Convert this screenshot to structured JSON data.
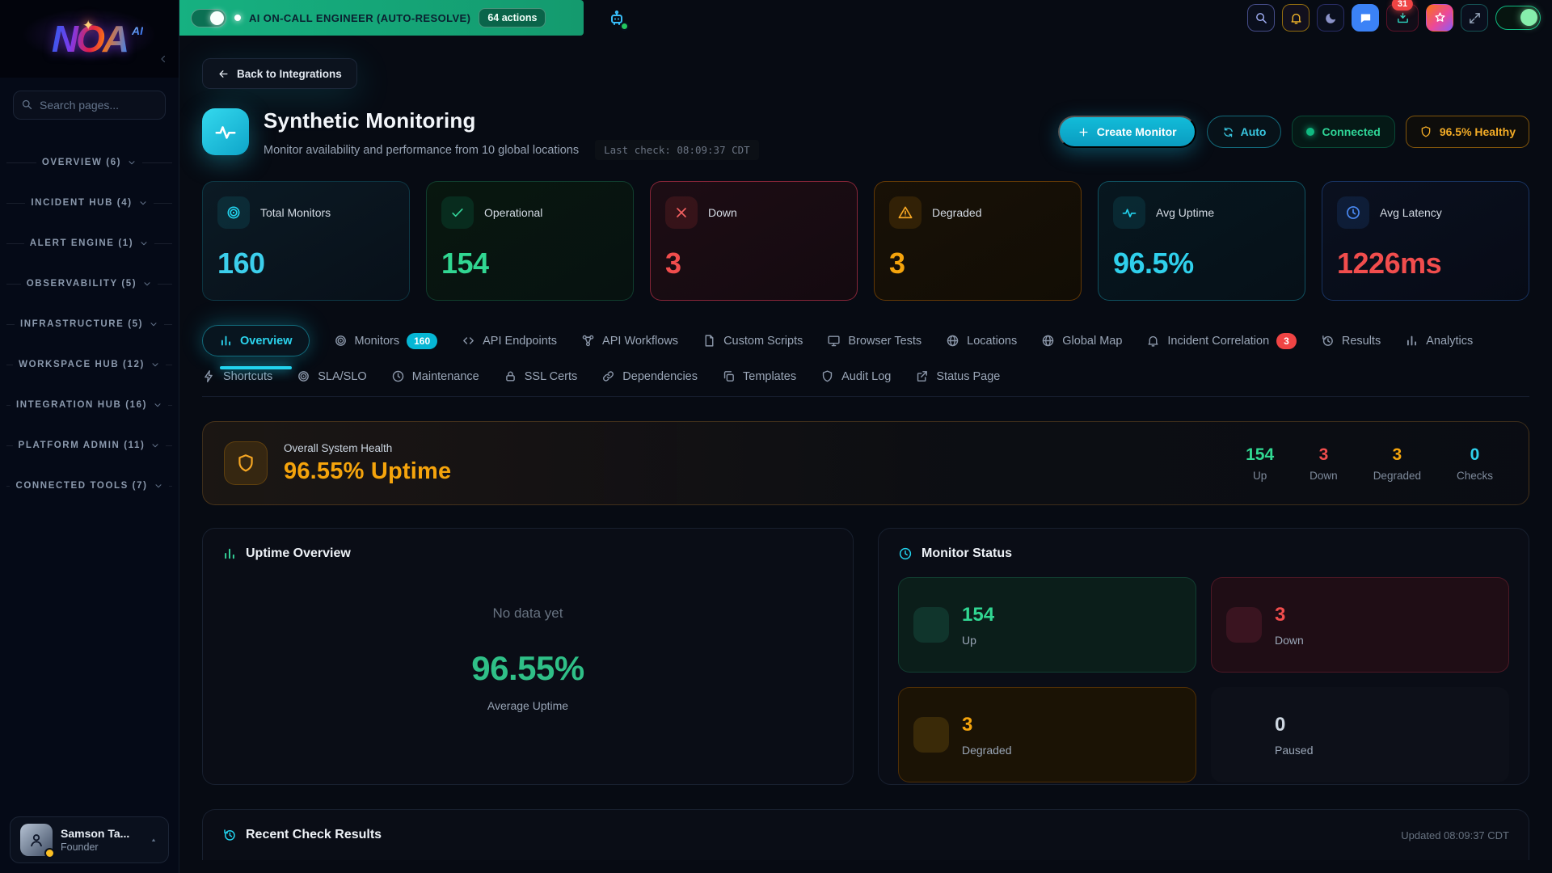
{
  "colors": {
    "accent_cyan": "#22d3ee",
    "success_green": "#34d399",
    "danger_red": "#f14d4d",
    "warning_amber": "#f5a40c",
    "info_blue": "#3b82f6",
    "banner_green": "#16b181"
  },
  "topbar": {
    "ai_banner": {
      "label": "AI ON-CALL ENGINEER (AUTO-RESOLVE)",
      "actions_badge": "64 actions",
      "toggle_state": "on"
    },
    "robot_icon": "robot",
    "icons": [
      "search",
      "bell",
      "moon",
      "chat",
      "inbox",
      "star",
      "expand"
    ],
    "notification_count": "31",
    "theme_toggle_state": "on"
  },
  "sidebar": {
    "logo_text": "NOA",
    "logo_sub": "AI",
    "logo_star": "✦",
    "search_placeholder": "Search pages...",
    "sections": [
      {
        "label": "OVERVIEW (6)"
      },
      {
        "label": "INCIDENT HUB (4)"
      },
      {
        "label": "ALERT ENGINE (1)"
      },
      {
        "label": "OBSERVABILITY (5)"
      },
      {
        "label": "INFRASTRUCTURE (5)"
      },
      {
        "label": "WORKSPACE HUB (12)"
      },
      {
        "label": "INTEGRATION HUB (16)"
      },
      {
        "label": "PLATFORM ADMIN (11)"
      },
      {
        "label": "CONNECTED TOOLS (7)"
      }
    ],
    "user": {
      "name": "Samson Ta...",
      "role": "Founder"
    }
  },
  "header": {
    "back_label": "Back to Integrations",
    "title": "Synthetic Monitoring",
    "subtitle": "Monitor availability and performance from 10 global locations",
    "last_check": "Last check: 08:09:37 CDT",
    "create_button": "Create Monitor",
    "auto_button": "Auto",
    "connected_label": "Connected",
    "health_label": "96.5% Healthy"
  },
  "stats": [
    {
      "label": "Total Monitors",
      "value": "160",
      "icon": "target"
    },
    {
      "label": "Operational",
      "value": "154",
      "icon": "check"
    },
    {
      "label": "Down",
      "value": "3",
      "icon": "x"
    },
    {
      "label": "Degraded",
      "value": "3",
      "icon": "warning"
    },
    {
      "label": "Avg Uptime",
      "value": "96.5%",
      "icon": "pulse"
    },
    {
      "label": "Avg Latency",
      "value": "1226ms",
      "icon": "clock"
    }
  ],
  "tabs": {
    "row1": [
      {
        "label": "Overview",
        "icon": "bars",
        "active": true
      },
      {
        "label": "Monitors",
        "icon": "target",
        "badge": "160"
      },
      {
        "label": "API Endpoints",
        "icon": "code"
      },
      {
        "label": "API Workflows",
        "icon": "workflow"
      },
      {
        "label": "Custom Scripts",
        "icon": "file"
      },
      {
        "label": "Browser Tests",
        "icon": "monitor"
      },
      {
        "label": "Locations",
        "icon": "globe"
      },
      {
        "label": "Global Map",
        "icon": "globe"
      },
      {
        "label": "Incident Correlation",
        "icon": "bell",
        "badge": "3"
      },
      {
        "label": "Results",
        "icon": "history"
      },
      {
        "label": "Analytics",
        "icon": "bars"
      }
    ],
    "row2": [
      {
        "label": "Shortcuts",
        "icon": "lightning"
      },
      {
        "label": "SLA/SLO",
        "icon": "target"
      },
      {
        "label": "Maintenance",
        "icon": "clock"
      },
      {
        "label": "SSL Certs",
        "icon": "lock"
      },
      {
        "label": "Dependencies",
        "icon": "link"
      },
      {
        "label": "Templates",
        "icon": "copy"
      },
      {
        "label": "Audit Log",
        "icon": "shield"
      },
      {
        "label": "Status Page",
        "icon": "external"
      }
    ]
  },
  "health": {
    "title": "Overall System Health",
    "uptime": "96.55% Uptime",
    "stats": [
      {
        "value": "154",
        "label": "Up"
      },
      {
        "value": "3",
        "label": "Down"
      },
      {
        "value": "3",
        "label": "Degraded"
      },
      {
        "value": "0",
        "label": "Checks"
      }
    ]
  },
  "uptime_overview": {
    "title": "Uptime Overview",
    "empty_text": "No data yet",
    "value": "96.55%",
    "value_label": "Average Uptime"
  },
  "monitor_status": {
    "title": "Monitor Status",
    "tiles": [
      {
        "value": "154",
        "label": "Up"
      },
      {
        "value": "3",
        "label": "Down"
      },
      {
        "value": "3",
        "label": "Degraded"
      },
      {
        "value": "0",
        "label": "Paused"
      }
    ]
  },
  "recent": {
    "title": "Recent Check Results",
    "updated": "Updated 08:09:37 CDT"
  }
}
